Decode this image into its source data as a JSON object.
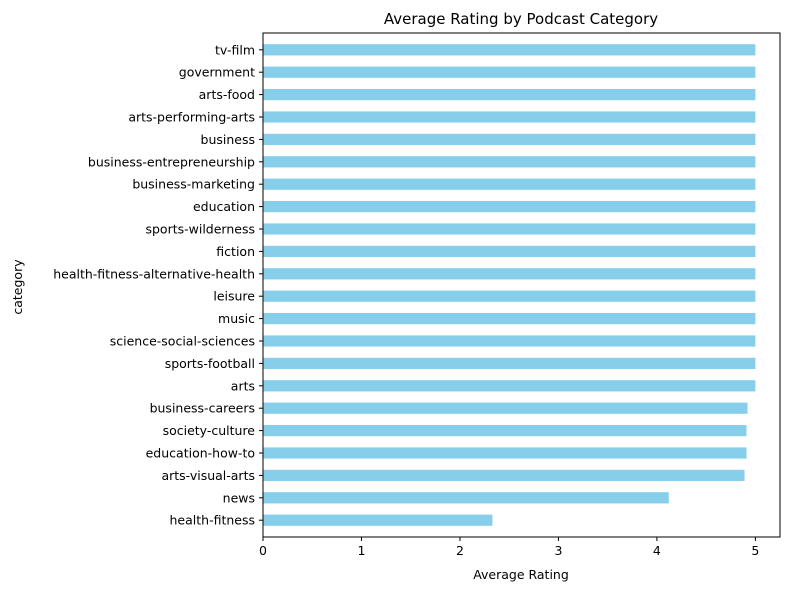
{
  "chart_data": {
    "type": "bar",
    "orientation": "horizontal",
    "title": "Average Rating by Podcast Category",
    "xlabel": "Average Rating",
    "ylabel": "category",
    "xlim": [
      0,
      5.25
    ],
    "xticks": [
      0,
      1,
      2,
      3,
      4,
      5
    ],
    "grid": false,
    "bar_color": "#87CEEB",
    "categories": [
      "tv-film",
      "government",
      "arts-food",
      "arts-performing-arts",
      "business",
      "business-entrepreneurship",
      "business-marketing",
      "education",
      "sports-wilderness",
      "fiction",
      "health-fitness-alternative-health",
      "leisure",
      "music",
      "science-social-sciences",
      "sports-football",
      "arts",
      "business-careers",
      "society-culture",
      "education-how-to",
      "arts-visual-arts",
      "news",
      "health-fitness"
    ],
    "values": [
      5.0,
      5.0,
      5.0,
      5.0,
      5.0,
      5.0,
      5.0,
      5.0,
      5.0,
      5.0,
      5.0,
      5.0,
      5.0,
      5.0,
      5.0,
      5.0,
      4.92,
      4.91,
      4.91,
      4.89,
      4.12,
      2.33
    ]
  }
}
